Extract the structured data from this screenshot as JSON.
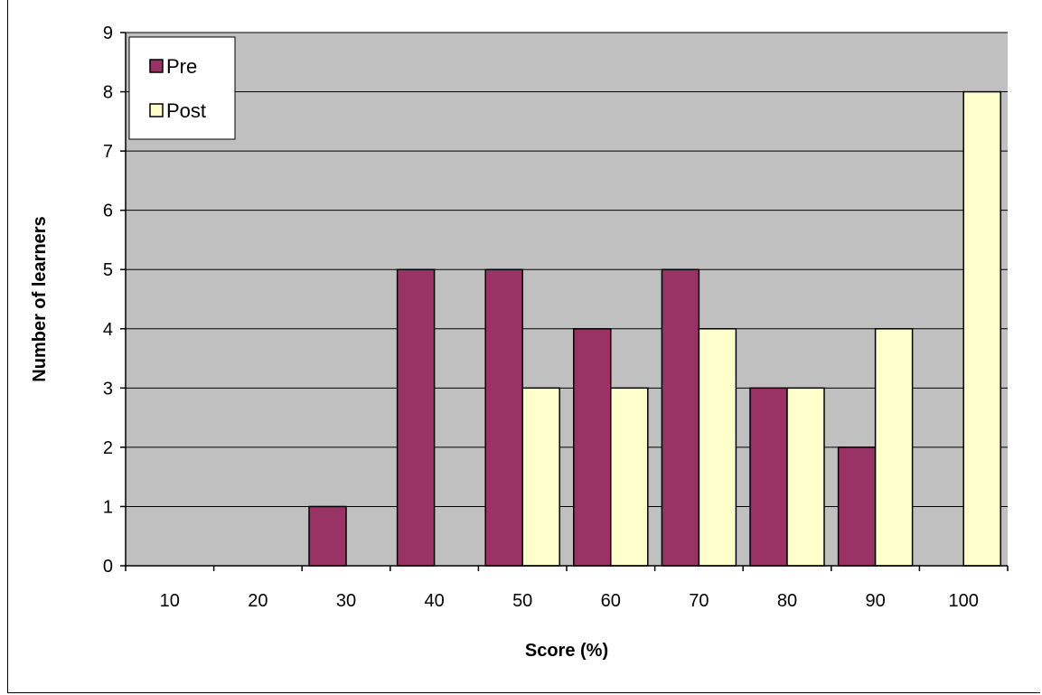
{
  "chart_data": {
    "type": "bar",
    "categories": [
      "10",
      "20",
      "30",
      "40",
      "50",
      "60",
      "70",
      "80",
      "90",
      "100"
    ],
    "series": [
      {
        "name": "Pre",
        "values": [
          0,
          0,
          1,
          5,
          5,
          4,
          5,
          3,
          2,
          0
        ],
        "color": "#993366"
      },
      {
        "name": "Post",
        "values": [
          0,
          0,
          0,
          0,
          3,
          3,
          4,
          3,
          4,
          8
        ],
        "color": "#ffffcc"
      }
    ],
    "xlabel": "Score (%)",
    "ylabel": "Number of learners",
    "ylim": [
      0,
      9
    ],
    "yticks": [
      0,
      1,
      2,
      3,
      4,
      5,
      6,
      7,
      8,
      9
    ],
    "grid": true,
    "legend_position": "top-left",
    "plot_background": "#c0c0c0"
  }
}
